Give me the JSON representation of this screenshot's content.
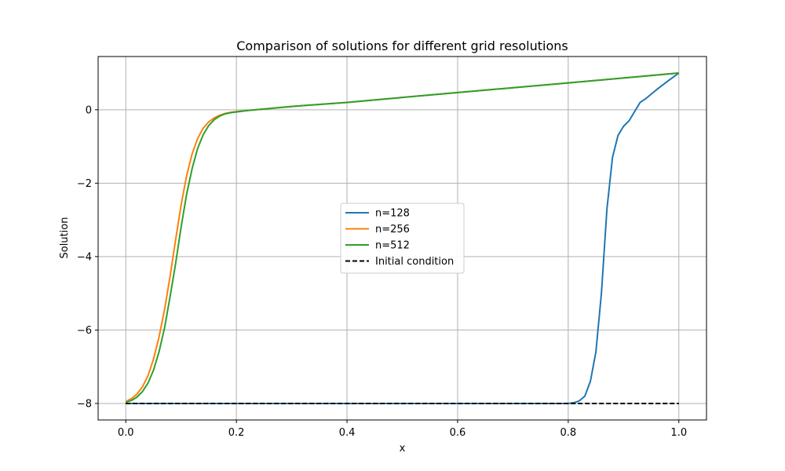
{
  "chart_data": {
    "type": "line",
    "title": "Comparison of solutions for different grid resolutions",
    "xlabel": "x",
    "ylabel": "Solution",
    "xlim": [
      -0.05,
      1.05
    ],
    "ylim": [
      -8.45,
      1.45
    ],
    "xticks": [
      {
        "value": 0.0,
        "label": "0.0"
      },
      {
        "value": 0.2,
        "label": "0.2"
      },
      {
        "value": 0.4,
        "label": "0.4"
      },
      {
        "value": 0.6,
        "label": "0.6"
      },
      {
        "value": 0.8,
        "label": "0.8"
      },
      {
        "value": 1.0,
        "label": "1.0"
      }
    ],
    "yticks": [
      {
        "value": 0,
        "label": "0"
      },
      {
        "value": -2,
        "label": "−2"
      },
      {
        "value": -4,
        "label": "−4"
      },
      {
        "value": -6,
        "label": "−6"
      },
      {
        "value": -8,
        "label": "−8"
      }
    ],
    "grid": true,
    "legend_position": "center",
    "series": [
      {
        "name": "n=128",
        "color": "#1f77b4",
        "dash": "solid",
        "x": [
          0.0,
          0.8,
          0.81,
          0.82,
          0.83,
          0.84,
          0.85,
          0.86,
          0.87,
          0.88,
          0.89,
          0.9,
          0.91,
          0.92,
          0.93,
          0.94,
          0.96,
          0.98,
          1.0
        ],
        "y": [
          -8.0,
          -8.0,
          -7.98,
          -7.93,
          -7.8,
          -7.4,
          -6.6,
          -5.0,
          -2.7,
          -1.3,
          -0.7,
          -0.45,
          -0.3,
          -0.05,
          0.2,
          0.3,
          0.55,
          0.78,
          1.0
        ]
      },
      {
        "name": "n=256",
        "color": "#ff7f0e",
        "dash": "solid",
        "x": [
          0.0,
          0.01,
          0.02,
          0.03,
          0.04,
          0.05,
          0.06,
          0.07,
          0.08,
          0.09,
          0.1,
          0.11,
          0.12,
          0.13,
          0.14,
          0.15,
          0.16,
          0.17,
          0.18,
          0.19,
          0.2,
          0.22,
          0.25,
          0.3,
          0.4,
          0.6,
          0.8,
          1.0
        ],
        "y": [
          -7.95,
          -7.87,
          -7.75,
          -7.55,
          -7.25,
          -6.8,
          -6.2,
          -5.45,
          -4.55,
          -3.55,
          -2.6,
          -1.8,
          -1.2,
          -0.78,
          -0.5,
          -0.33,
          -0.22,
          -0.15,
          -0.1,
          -0.07,
          -0.05,
          -0.02,
          0.02,
          0.09,
          0.2,
          0.47,
          0.73,
          1.0
        ]
      },
      {
        "name": "n=512",
        "color": "#2ca02c",
        "dash": "solid",
        "x": [
          0.0,
          0.01,
          0.02,
          0.03,
          0.04,
          0.05,
          0.06,
          0.07,
          0.08,
          0.09,
          0.1,
          0.11,
          0.12,
          0.13,
          0.14,
          0.15,
          0.16,
          0.17,
          0.18,
          0.19,
          0.2,
          0.22,
          0.25,
          0.3,
          0.4,
          0.6,
          0.8,
          1.0
        ],
        "y": [
          -7.97,
          -7.92,
          -7.83,
          -7.68,
          -7.45,
          -7.1,
          -6.6,
          -5.95,
          -5.1,
          -4.2,
          -3.2,
          -2.3,
          -1.6,
          -1.05,
          -0.68,
          -0.43,
          -0.27,
          -0.17,
          -0.11,
          -0.08,
          -0.06,
          -0.02,
          0.02,
          0.09,
          0.2,
          0.47,
          0.73,
          1.0
        ]
      },
      {
        "name": "Initial condition",
        "color": "#000000",
        "dash": "dashed",
        "x": [
          0.0,
          1.0
        ],
        "y": [
          -8.0,
          -8.0
        ]
      }
    ]
  }
}
